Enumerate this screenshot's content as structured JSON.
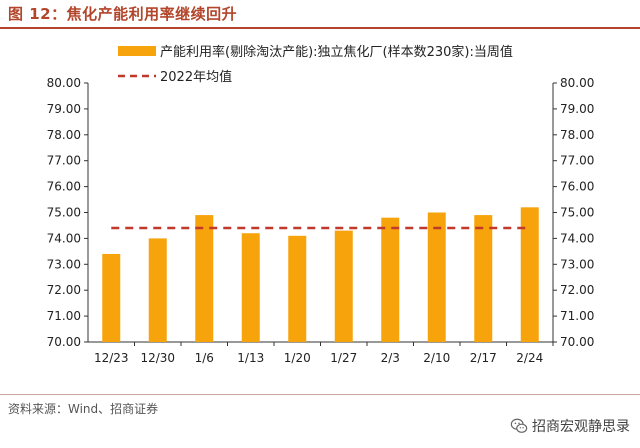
{
  "header": {
    "title": "图 12：焦化产能利用率继续回升"
  },
  "footer": {
    "source": "资料来源：Wind、招商证券",
    "watermark": "招商宏观静思录",
    "watermark_icon": "wechat-icon"
  },
  "chart_data": {
    "type": "bar",
    "title": "",
    "xlabel": "",
    "ylabel": "",
    "categories": [
      "12/23",
      "12/30",
      "1/6",
      "1/13",
      "1/20",
      "1/27",
      "2/3",
      "2/10",
      "2/17",
      "2/24"
    ],
    "series": [
      {
        "name": "产能利用率(剔除淘汰产能):独立焦化厂(样本数230家):当周值",
        "type": "bar",
        "color": "#f7a30b",
        "values": [
          73.4,
          74.0,
          74.9,
          74.2,
          74.1,
          74.3,
          74.8,
          75.0,
          74.9,
          75.2
        ]
      },
      {
        "name": "2022年均值",
        "type": "line",
        "style": "dashed",
        "color": "#c0392b",
        "values": [
          74.4,
          74.4,
          74.4,
          74.4,
          74.4,
          74.4,
          74.4,
          74.4,
          74.4,
          74.4
        ]
      }
    ],
    "ylim": [
      70.0,
      80.0
    ],
    "yticks": [
      "70.00",
      "71.00",
      "72.00",
      "73.00",
      "74.00",
      "75.00",
      "76.00",
      "77.00",
      "78.00",
      "79.00",
      "80.00"
    ],
    "y_axis": "both sides",
    "legend": "top",
    "grid": false
  }
}
